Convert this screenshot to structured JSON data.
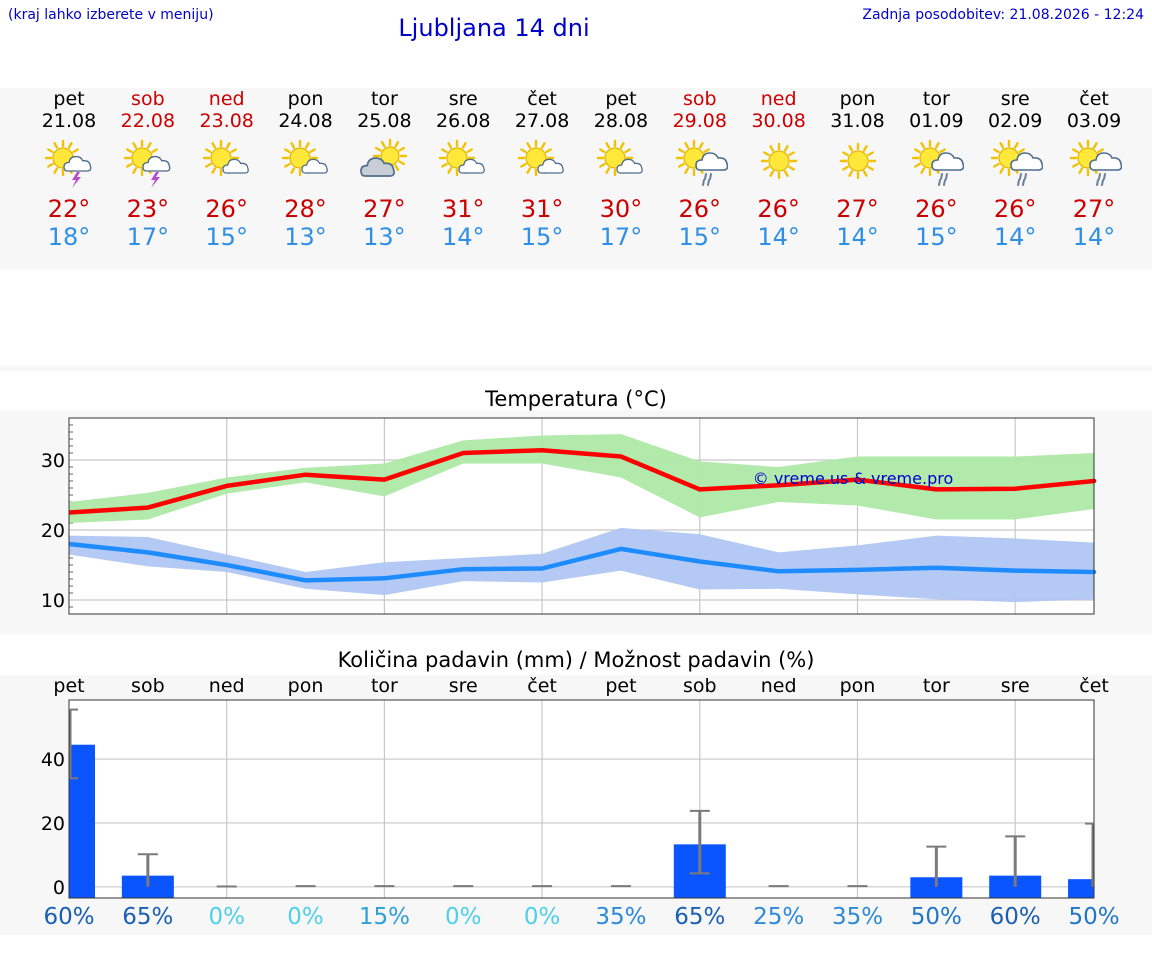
{
  "header": {
    "hint": "(kraj lahko izberete v meniju)",
    "title": "Ljubljana 14 dni",
    "updated": "Zadnja posodobitev: 21.08.2026 - 12:24"
  },
  "colors": {
    "max_line": "#ff0000",
    "max_band": "#aee9a6",
    "min_line": "#1e8cff",
    "min_band": "#b0c6f2",
    "bar": "#0b55ff",
    "error_bar": "#7a7a7a"
  },
  "days": [
    {
      "name": "pet",
      "date": "21.08",
      "weekend": false,
      "icon": "sun-cloud-storm-icon",
      "max": "22°",
      "min": "18°"
    },
    {
      "name": "sob",
      "date": "22.08",
      "weekend": true,
      "icon": "sun-cloud-storm-icon",
      "max": "23°",
      "min": "17°"
    },
    {
      "name": "ned",
      "date": "23.08",
      "weekend": true,
      "icon": "sun-small-cloud-icon",
      "max": "26°",
      "min": "15°"
    },
    {
      "name": "pon",
      "date": "24.08",
      "weekend": false,
      "icon": "sun-small-cloud-icon",
      "max": "28°",
      "min": "13°"
    },
    {
      "name": "tor",
      "date": "25.08",
      "weekend": false,
      "icon": "cloud-sun-icon",
      "max": "27°",
      "min": "13°"
    },
    {
      "name": "sre",
      "date": "26.08",
      "weekend": false,
      "icon": "sun-small-cloud-icon",
      "max": "31°",
      "min": "14°"
    },
    {
      "name": "čet",
      "date": "27.08",
      "weekend": false,
      "icon": "sun-small-cloud-icon",
      "max": "31°",
      "min": "15°"
    },
    {
      "name": "pet",
      "date": "28.08",
      "weekend": false,
      "icon": "sun-small-cloud-icon",
      "max": "30°",
      "min": "17°"
    },
    {
      "name": "sob",
      "date": "29.08",
      "weekend": true,
      "icon": "sun-cloud-rain-icon",
      "max": "26°",
      "min": "15°"
    },
    {
      "name": "ned",
      "date": "30.08",
      "weekend": true,
      "icon": "sun-icon",
      "max": "26°",
      "min": "14°"
    },
    {
      "name": "pon",
      "date": "31.08",
      "weekend": false,
      "icon": "sun-icon",
      "max": "27°",
      "min": "14°"
    },
    {
      "name": "tor",
      "date": "01.09",
      "weekend": false,
      "icon": "sun-cloud-rain-icon",
      "max": "26°",
      "min": "15°"
    },
    {
      "name": "sre",
      "date": "02.09",
      "weekend": false,
      "icon": "sun-cloud-rain-icon",
      "max": "26°",
      "min": "14°"
    },
    {
      "name": "čet",
      "date": "03.09",
      "weekend": false,
      "icon": "sun-cloud-rain-icon",
      "max": "27°",
      "min": "14°"
    }
  ],
  "watermark": "© vreme.us & vreme.pro",
  "chart_data": [
    {
      "type": "line",
      "title": "Temperatura (°C)",
      "x": [
        "pet",
        "sob",
        "ned",
        "pon",
        "tor",
        "sre",
        "čet",
        "pet",
        "sob",
        "ned",
        "pon",
        "tor",
        "sre",
        "čet"
      ],
      "ylim": [
        8,
        36
      ],
      "yticks": [
        10,
        20,
        30
      ],
      "grid": true,
      "series": [
        {
          "values": [
            22.5,
            23.2,
            26.3,
            27.9,
            27.2,
            31.0,
            31.4,
            30.5,
            25.8,
            26.4,
            27.2,
            25.8,
            25.9,
            27.0
          ],
          "band_low": [
            21.0,
            21.5,
            25.2,
            26.8,
            24.8,
            29.5,
            29.5,
            27.5,
            21.8,
            24.0,
            23.5,
            21.5,
            21.5,
            23.0
          ],
          "band_high": [
            24.0,
            25.3,
            27.5,
            28.9,
            29.5,
            32.8,
            33.5,
            33.7,
            29.8,
            29.0,
            30.5,
            30.5,
            30.5,
            31.0
          ]
        },
        {
          "values": [
            18.0,
            16.8,
            15.0,
            12.8,
            13.1,
            14.4,
            14.5,
            17.3,
            15.5,
            14.1,
            14.3,
            14.6,
            14.2,
            14.0
          ],
          "band_low": [
            16.5,
            14.8,
            14.0,
            11.6,
            10.7,
            12.7,
            12.5,
            14.2,
            11.5,
            11.6,
            10.8,
            10.1,
            9.7,
            10.1
          ],
          "band_high": [
            19.2,
            19.0,
            16.5,
            14.0,
            15.4,
            16.0,
            16.6,
            20.3,
            19.4,
            16.8,
            17.8,
            19.2,
            18.8,
            18.2
          ]
        }
      ]
    },
    {
      "type": "bar",
      "title": "Količina padavin (mm) / Možnost padavin (%)",
      "categories": [
        "pet",
        "sob",
        "ned",
        "pon",
        "tor",
        "sre",
        "čet",
        "pet",
        "sob",
        "ned",
        "pon",
        "tor",
        "sre",
        "čet"
      ],
      "values": [
        44.5,
        3.5,
        0,
        0,
        0,
        0,
        0,
        0,
        13.3,
        0,
        0,
        3.0,
        3.5,
        2.4
      ],
      "error_low": [
        34,
        0,
        0,
        0,
        0,
        0,
        0,
        0,
        4.2,
        0,
        0,
        0,
        0,
        0
      ],
      "error_high": [
        55.5,
        10.2,
        0.1,
        0.2,
        0.2,
        0.2,
        0.2,
        0.2,
        23.8,
        0.2,
        0.2,
        12.6,
        15.8,
        19.8
      ],
      "ylim": [
        -3.5,
        58.5
      ],
      "yticks": [
        0,
        20,
        40
      ],
      "chance": [
        "60%",
        "65%",
        "0%",
        "0%",
        "15%",
        "0%",
        "0%",
        "35%",
        "65%",
        "25%",
        "35%",
        "50%",
        "60%",
        "50%"
      ],
      "chance_colors": [
        "#1a5fb4",
        "#1a5fb4",
        "#4dd0e8",
        "#4dd0e8",
        "#2ca0d8",
        "#4dd0e8",
        "#4dd0e8",
        "#2c8ad8",
        "#1a5fb4",
        "#2c8ad8",
        "#2c8ad8",
        "#2176c8",
        "#1a5fb4",
        "#2176c8"
      ]
    }
  ]
}
